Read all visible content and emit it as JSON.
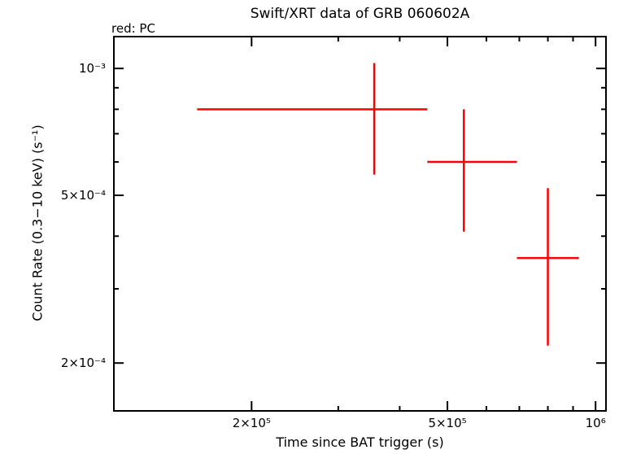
{
  "chart_data": {
    "type": "scatter",
    "mode": "errorbar-cross",
    "title": "Swift/XRT data of GRB 060602A",
    "legend": "red: PC",
    "legend_position": "top-left",
    "xlabel": "Time since BAT trigger (s)",
    "ylabel": "Count Rate (0.3−10 keV) (s⁻¹)",
    "xscale": "log",
    "yscale": "log",
    "grid": false,
    "color": "#ff0000",
    "frame_color": "#000000",
    "xlim": [
      105000,
      1050000
    ],
    "ylim": [
      0.000154,
      0.00119
    ],
    "x_ticks": [
      {
        "value": 200000,
        "label": "2×10⁵"
      },
      {
        "value": 500000,
        "label": "5×10⁵"
      },
      {
        "value": 1000000,
        "label": "10⁶"
      }
    ],
    "y_ticks": [
      {
        "value": 0.001,
        "label": "10⁻³"
      },
      {
        "value": 0.0005,
        "label": "5×10⁻⁴"
      },
      {
        "value": 0.0002,
        "label": "2×10⁻⁴"
      }
    ],
    "series": [
      {
        "name": "PC",
        "points": [
          {
            "x": 355000,
            "x_low": 155000,
            "x_high": 455000,
            "y": 0.0008,
            "y_low": 0.00056,
            "y_high": 0.00103
          },
          {
            "x": 540000,
            "x_low": 455000,
            "x_high": 692000,
            "y": 0.0006,
            "y_low": 0.00041,
            "y_high": 0.0008
          },
          {
            "x": 800000,
            "x_low": 692000,
            "x_high": 925000,
            "y": 0.000355,
            "y_low": 0.00022,
            "y_high": 0.00052
          }
        ]
      }
    ]
  }
}
